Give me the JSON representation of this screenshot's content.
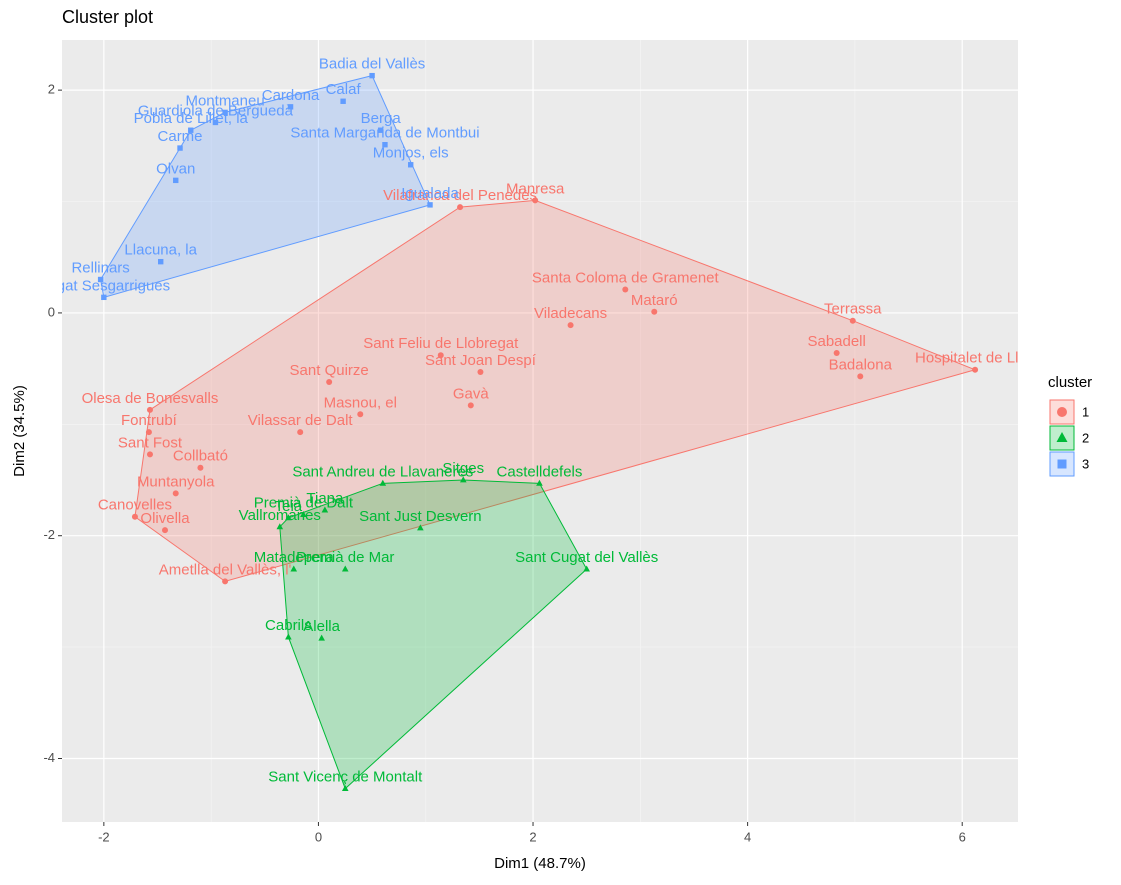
{
  "chart_data": {
    "type": "scatter",
    "title": "Cluster plot",
    "x_label": "Dim1 (48.7%)",
    "y_label": "Dim2 (34.5%)",
    "legend_title": "cluster",
    "legend_position": "right",
    "grid": true,
    "xlim": [
      -2.39,
      6.52
    ],
    "ylim": [
      -4.57,
      2.45
    ],
    "xticks": [
      -2,
      0,
      2,
      4,
      6
    ],
    "yticks": [
      -4,
      -2,
      0,
      2
    ],
    "series": [
      {
        "name": "1",
        "color": "#F8766D",
        "shape": "circle",
        "labels": [
          "Manresa",
          "Terrassa",
          "Sabadell",
          "Badalona",
          "Hospitalet de Llob",
          "Mataró",
          "Santa Coloma de Gramenet",
          "Vilafranca del Penedès",
          "Viladecans",
          "Sant Feliu de Llobregat",
          "Sant Joan Despí",
          "Gavà",
          "Masnou, el",
          "Sant Quirze",
          "Vilassar de Dalt",
          "Olesa de Bonesvalls",
          "Fontrubí",
          "Sant Fost",
          "Collbató",
          "Muntanyola",
          "Canovelles",
          "Olivella",
          "Ametlla del Vallès, l'"
        ],
        "x": [
          2.02,
          4.98,
          4.83,
          5.05,
          6.12,
          3.13,
          2.86,
          1.32,
          2.35,
          1.14,
          1.51,
          1.42,
          0.39,
          0.1,
          -0.17,
          -1.57,
          -1.58,
          -1.57,
          -1.1,
          -1.33,
          -1.71,
          -1.43,
          -0.87
        ],
        "y": [
          1.01,
          -0.07,
          -0.36,
          -0.57,
          -0.51,
          0.01,
          0.21,
          0.95,
          -0.11,
          -0.38,
          -0.53,
          -0.83,
          -0.91,
          -0.62,
          -1.07,
          -0.87,
          -1.07,
          -1.27,
          -1.39,
          -1.62,
          -1.83,
          -1.95,
          -2.41
        ]
      },
      {
        "name": "2",
        "color": "#00BA38",
        "shape": "triangle",
        "labels": [
          "Sant Andreu de Llavaneres",
          "Sitges",
          "Castelldefels",
          "Premià de Dalt",
          "Tiana",
          "Teià",
          "Sant Just Desvern",
          "Vallromanes",
          "Sant Cugat del Vallès",
          "Matadepera",
          "Premià de Mar",
          "Cabrils",
          "Alella",
          "Sant Vicenç de Montalt"
        ],
        "x": [
          0.6,
          1.35,
          2.06,
          -0.14,
          0.06,
          -0.28,
          0.95,
          -0.36,
          2.5,
          -0.23,
          0.25,
          -0.28,
          0.03,
          0.25
        ],
        "y": [
          -1.53,
          -1.5,
          -1.53,
          -1.81,
          -1.77,
          -1.84,
          -1.93,
          -1.92,
          -2.3,
          -2.3,
          -2.3,
          -2.91,
          -2.92,
          -4.27
        ]
      },
      {
        "name": "3",
        "color": "#619CFF",
        "shape": "square",
        "labels": [
          "Badia del Vallès",
          "Calaf",
          "Cardona",
          "Montmaneu",
          "Guardiola de Berguedà",
          "Pobla de Lillet, la",
          "Berga",
          "Santa Margarida de Montbui",
          "Monjos, els",
          "Carme",
          "Olvan",
          "Igualada",
          "Llacuna, la",
          "Rellinars",
          "Cugat Sesgarrigues"
        ],
        "x": [
          0.5,
          0.23,
          -0.26,
          -0.87,
          -0.96,
          -1.19,
          0.58,
          0.62,
          0.86,
          -1.29,
          -1.33,
          1.04,
          -1.47,
          -2.03,
          -2.0
        ],
        "y": [
          2.13,
          1.9,
          1.85,
          1.8,
          1.71,
          1.64,
          1.64,
          1.51,
          1.33,
          1.48,
          1.19,
          0.97,
          0.46,
          0.3,
          0.14
        ]
      }
    ]
  }
}
